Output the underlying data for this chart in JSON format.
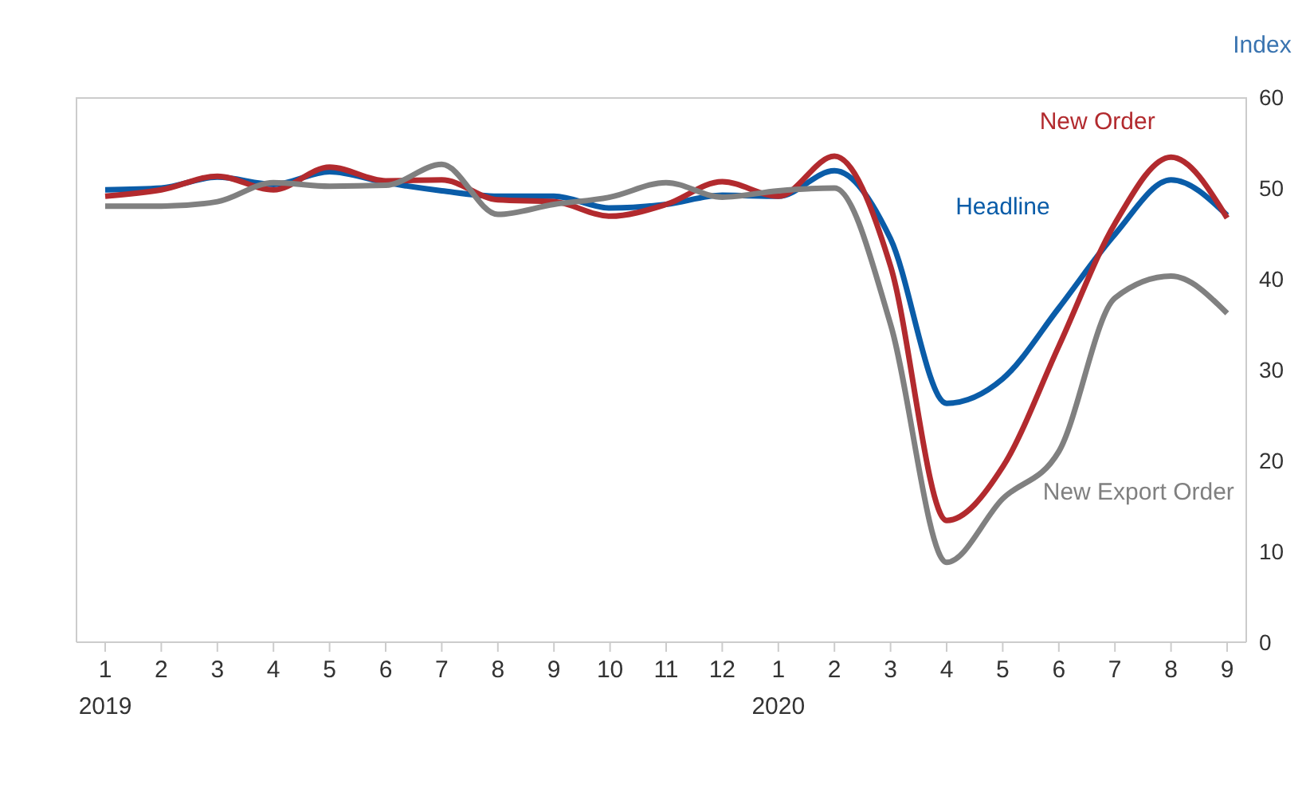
{
  "chart_data": {
    "type": "line",
    "ylabel": "Index",
    "categories": [
      "1\n2019",
      "2",
      "3",
      "4",
      "5",
      "6",
      "7",
      "8",
      "9",
      "10",
      "11",
      "12",
      "1\n2020",
      "2",
      "3",
      "4",
      "5",
      "6",
      "7",
      "8",
      "9"
    ],
    "series": [
      {
        "name": "Headline",
        "color": "#0a5ca8",
        "values": [
          49.8,
          50,
          51.2,
          50.4,
          51.8,
          50.6,
          49.7,
          49.1,
          49.1,
          47.8,
          48.2,
          49.2,
          49.1,
          51.9,
          44.4,
          26.3,
          29,
          36.8,
          44.9,
          50.9,
          47
        ]
      },
      {
        "name": "New Order",
        "color": "#b22a2e",
        "values": [
          49.1,
          49.8,
          51.3,
          49.8,
          52.3,
          50.8,
          50.9,
          48.7,
          48.5,
          46.9,
          48.2,
          50.7,
          49.1,
          53.5,
          41.4,
          13.4,
          19.3,
          32.6,
          46.1,
          53.4,
          46.7
        ]
      },
      {
        "name": "New Export Order",
        "color": "#808080",
        "values": [
          48,
          48,
          48.5,
          50.6,
          50.2,
          50.3,
          52.6,
          47.1,
          48.2,
          49,
          50.6,
          49,
          49.7,
          50,
          35,
          8.8,
          15.8,
          21,
          37.9,
          40.3,
          36.2
        ]
      }
    ],
    "ylim": [
      0,
      60
    ],
    "yticks": [
      0,
      10,
      20,
      30,
      40,
      50,
      60
    ],
    "grid": false,
    "legend": false,
    "line_style": "solid",
    "marker": "none"
  }
}
